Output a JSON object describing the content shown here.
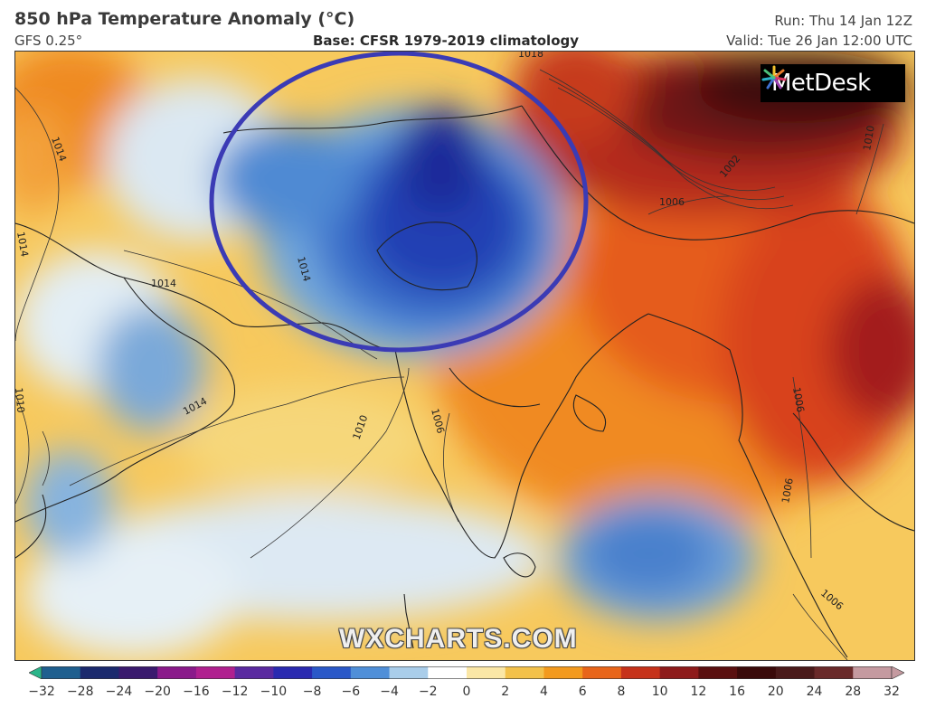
{
  "header": {
    "title": "850 hPa Temperature Anomaly (°C)",
    "model": "GFS 0.25°",
    "base": "Base: CFSR 1979-2019 climatology",
    "run": "Run: Thu 14 Jan 12Z",
    "valid": "Valid: Tue 26 Jan 12:00 UTC"
  },
  "logo": {
    "text": "MetDesk"
  },
  "watermark": "WXCHARTS.COM",
  "isobar_labels": [
    "1014",
    "1014",
    "1014",
    "1014",
    "1010",
    "1010",
    "1006",
    "1006",
    "1006",
    "1002",
    "1010",
    "1006",
    "1018",
    "1014",
    "1006"
  ],
  "colorbar": {
    "ticks": [
      "−32",
      "−28",
      "−24",
      "−20",
      "−16",
      "−12",
      "−10",
      "−8",
      "−6",
      "−4",
      "−2",
      "0",
      "2",
      "4",
      "6",
      "8",
      "10",
      "12",
      "16",
      "20",
      "24",
      "28",
      "32"
    ],
    "colors": [
      "#2bb58a",
      "#1f5f8f",
      "#1b2a6e",
      "#3a1a6e",
      "#8a1a8a",
      "#b0208f",
      "#5a2aa0",
      "#2a2ab0",
      "#2a58c8",
      "#4f8fd8",
      "#a9cdea",
      "#ffffff",
      "#fbe7a6",
      "#f3c14a",
      "#f39a1e",
      "#e8651a",
      "#c6321a",
      "#8e1b1b",
      "#5a1010",
      "#3a0a0a",
      "#4a1a1a",
      "#6a2a2a",
      "#c59aa0"
    ]
  },
  "highlight": {
    "color": "#3b3bb5"
  }
}
